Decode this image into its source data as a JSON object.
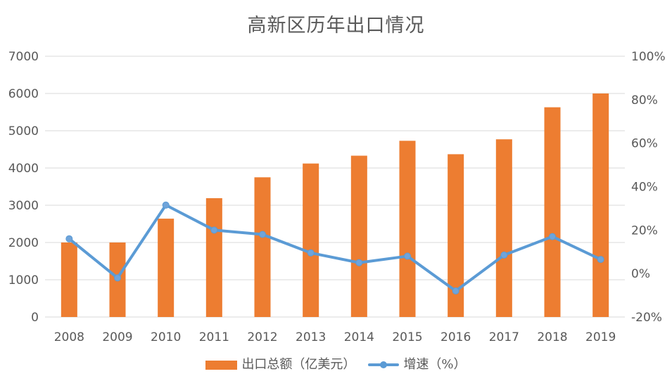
{
  "colors": {
    "background": "#FFFFFF",
    "bar": "#ED7D31",
    "line": "#5B9BD5",
    "marker": "#6FA4DA",
    "grid": "#D9D9D9",
    "axis_text": "#595959",
    "title_text": "#595959"
  },
  "chart_data": {
    "type": "bar",
    "subtype": "combo-bar-line-dual-axis",
    "title": "高新区历年出口情况",
    "categories": [
      "2008",
      "2009",
      "2010",
      "2011",
      "2012",
      "2013",
      "2014",
      "2015",
      "2016",
      "2017",
      "2018",
      "2019"
    ],
    "series": [
      {
        "name": "出口总额（亿美元）",
        "type": "bar",
        "axis": "left",
        "color": "#ED7D31",
        "values": [
          2000,
          2000,
          2640,
          3190,
          3750,
          4120,
          4330,
          4730,
          4370,
          4770,
          5630,
          6000
        ]
      },
      {
        "name": "增速（%）",
        "type": "line",
        "axis": "right",
        "color": "#5B9BD5",
        "values": [
          16,
          -2,
          31.5,
          20,
          18,
          9.5,
          5,
          8,
          -8,
          8.5,
          17,
          6.5
        ]
      }
    ],
    "axes": {
      "left": {
        "min": 0,
        "max": 7000,
        "step": 1000,
        "tick_labels": [
          "0",
          "1000",
          "2000",
          "3000",
          "4000",
          "5000",
          "6000",
          "7000"
        ]
      },
      "right": {
        "min": -20,
        "max": 100,
        "step": 20,
        "tick_labels": [
          "-20%",
          "0%",
          "20%",
          "40%",
          "60%",
          "80%",
          "100%"
        ]
      }
    },
    "grid": "horizontal",
    "legend_position": "bottom",
    "xlabel": "",
    "ylabel": ""
  }
}
